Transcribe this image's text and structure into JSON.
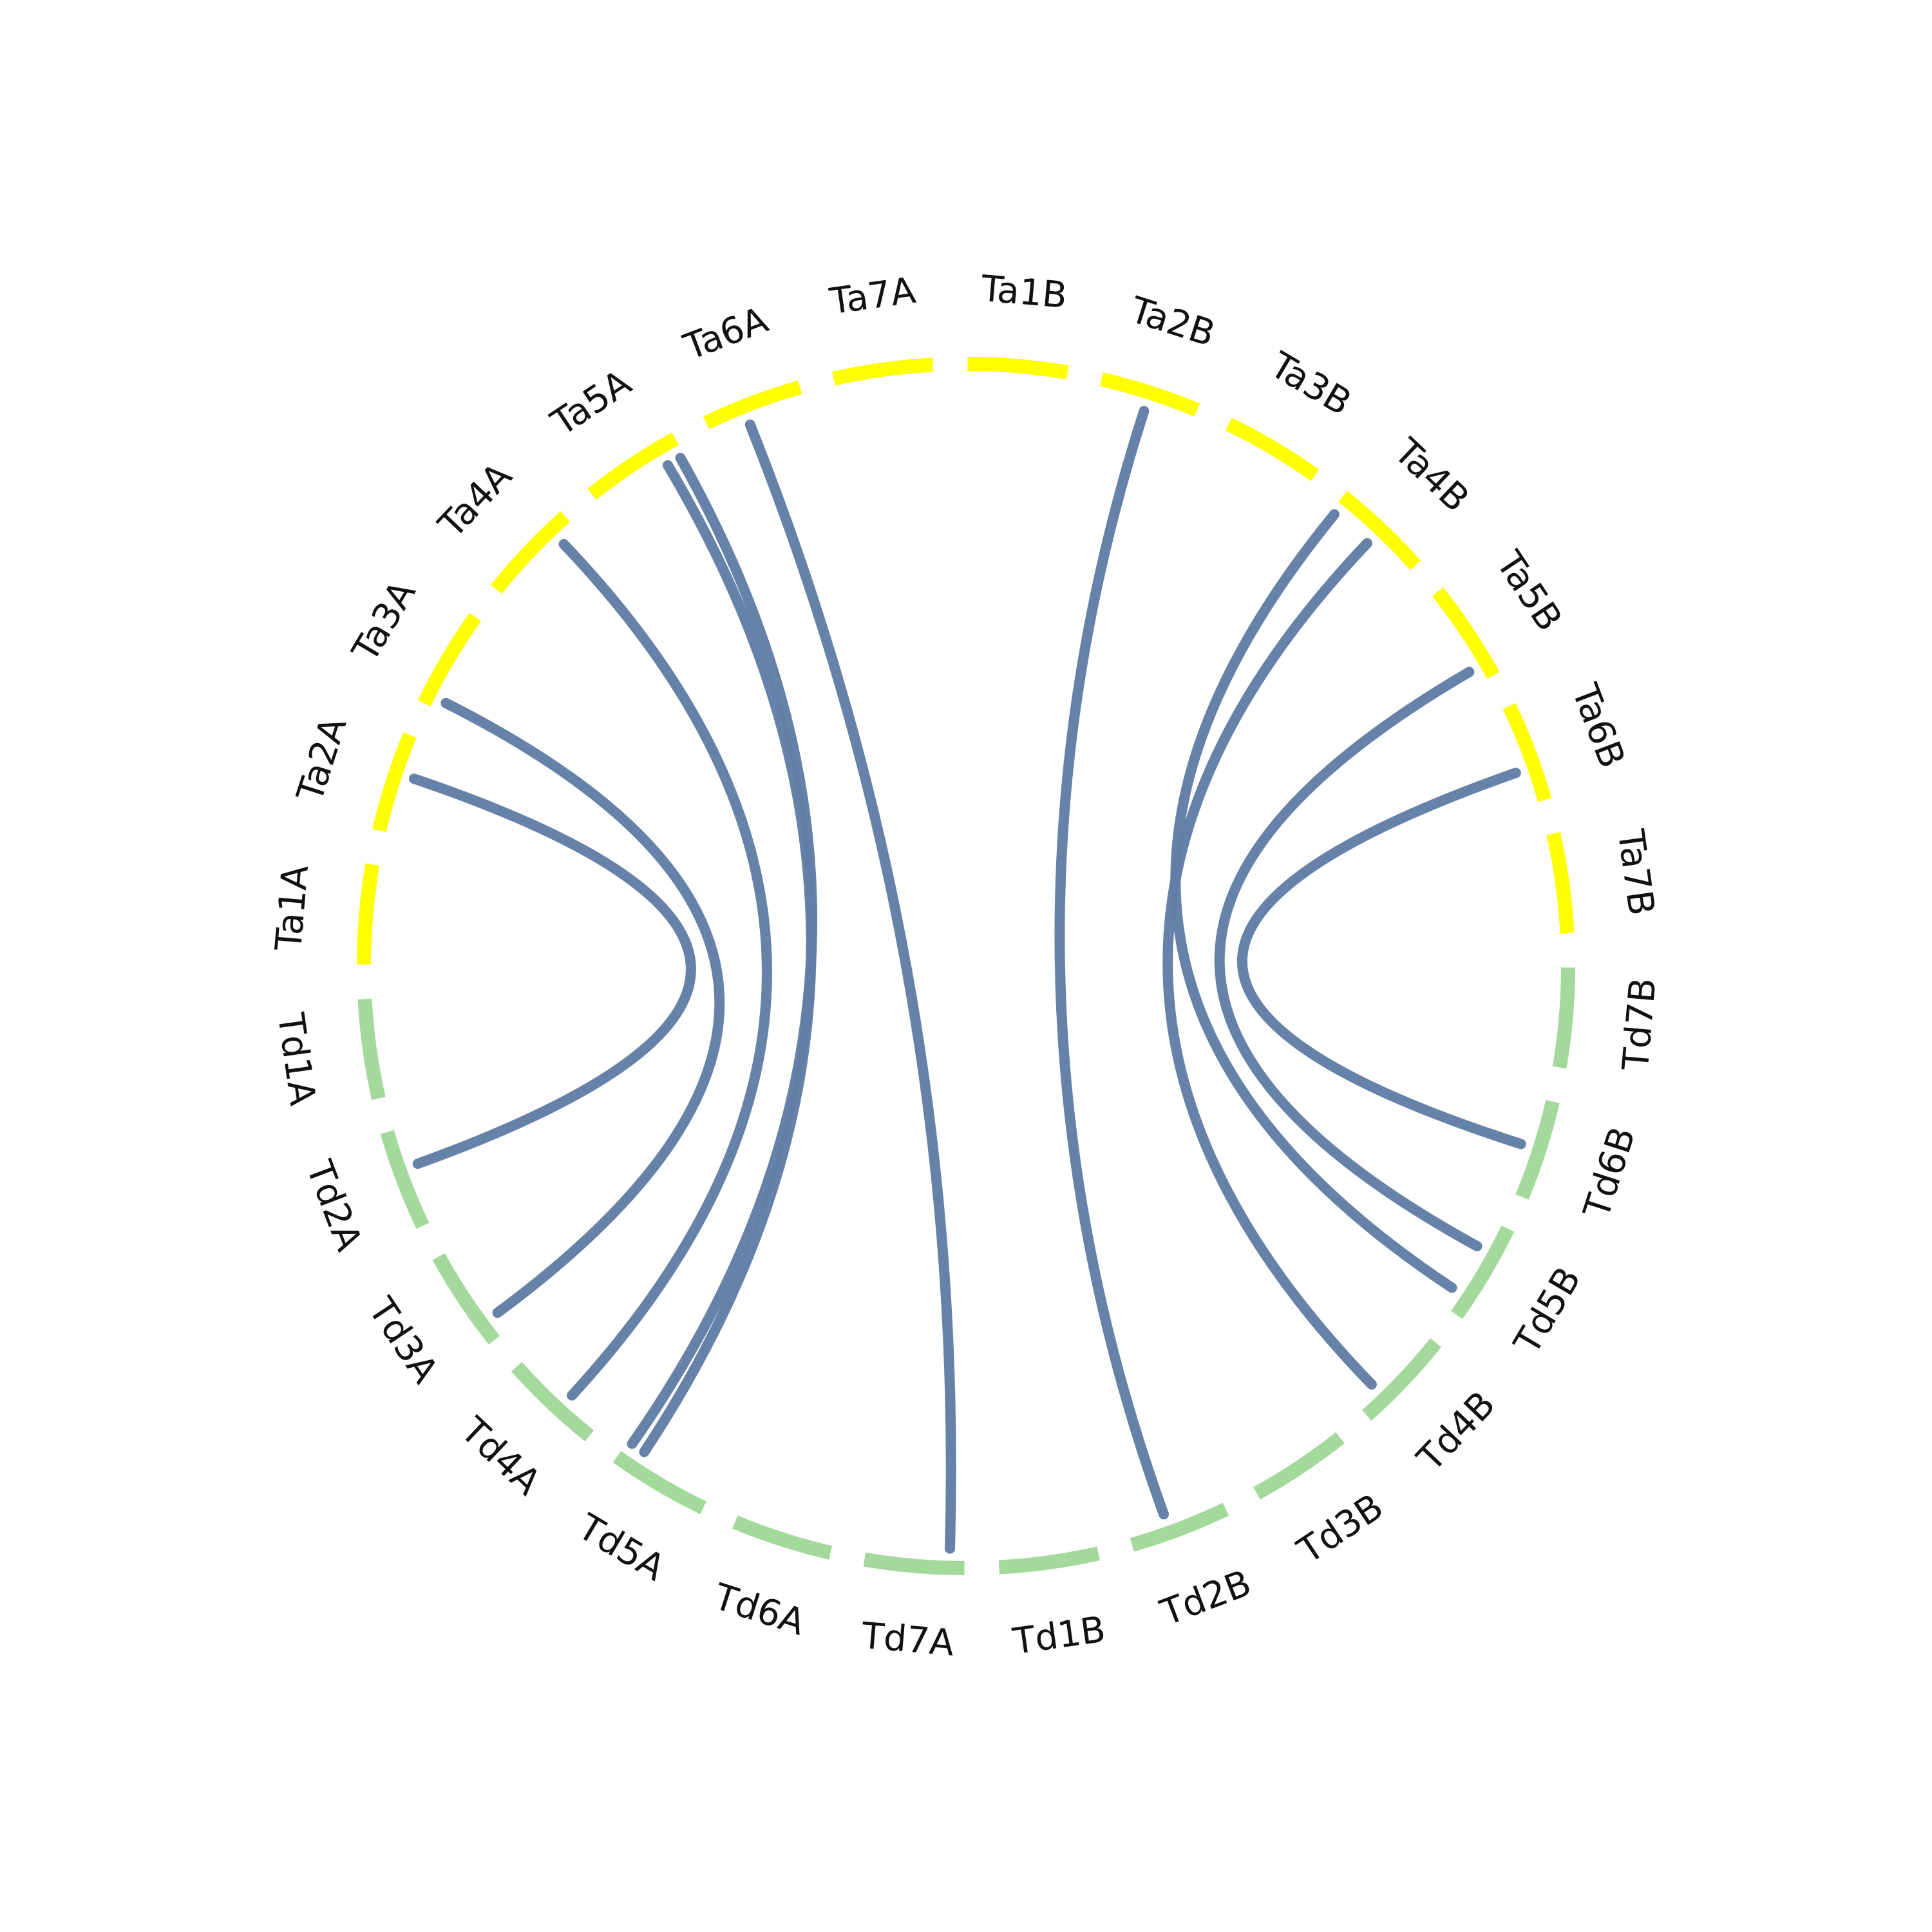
{
  "colors": {
    "background": "#ffffff",
    "td_segment": "#a3d99b",
    "ta_segment": "#ffff00",
    "link": "#627ea6"
  },
  "chart_data": {
    "type": "chord",
    "segments": [
      {
        "name": "Ta1A",
        "group": "Ta"
      },
      {
        "name": "Ta2A",
        "group": "Ta"
      },
      {
        "name": "Ta3A",
        "group": "Ta"
      },
      {
        "name": "Ta4A",
        "group": "Ta"
      },
      {
        "name": "Ta5A",
        "group": "Ta"
      },
      {
        "name": "Ta6A",
        "group": "Ta"
      },
      {
        "name": "Ta7A",
        "group": "Ta"
      },
      {
        "name": "Ta1B",
        "group": "Ta"
      },
      {
        "name": "Ta2B",
        "group": "Ta"
      },
      {
        "name": "Ta3B",
        "group": "Ta"
      },
      {
        "name": "Ta4B",
        "group": "Ta"
      },
      {
        "name": "Ta5B",
        "group": "Ta"
      },
      {
        "name": "Ta6B",
        "group": "Ta"
      },
      {
        "name": "Ta7B",
        "group": "Ta"
      },
      {
        "name": "Td7B",
        "group": "Td"
      },
      {
        "name": "Td6B",
        "group": "Td"
      },
      {
        "name": "Td5B",
        "group": "Td"
      },
      {
        "name": "Td4B",
        "group": "Td"
      },
      {
        "name": "Td3B",
        "group": "Td"
      },
      {
        "name": "Td2B",
        "group": "Td"
      },
      {
        "name": "Td1B",
        "group": "Td"
      },
      {
        "name": "Td7A",
        "group": "Td"
      },
      {
        "name": "Td6A",
        "group": "Td"
      },
      {
        "name": "Td5A",
        "group": "Td"
      },
      {
        "name": "Td4A",
        "group": "Td"
      },
      {
        "name": "Td3A",
        "group": "Td"
      },
      {
        "name": "Td2A",
        "group": "Td"
      },
      {
        "name": "Td1A",
        "group": "Td"
      }
    ],
    "links": [
      {
        "source": "Td2A",
        "source_pos": 0.6,
        "target": "Ta2A",
        "target_pos": 0.6
      },
      {
        "source": "Td3A",
        "source_pos": 0.2,
        "target": "Ta3A",
        "target_pos": 0.1
      },
      {
        "source": "Td4A",
        "source_pos": 0.4,
        "target": "Ta4A",
        "target_pos": 0.8
      },
      {
        "source": "Td5A",
        "source_pos": 0.8,
        "target": "Ta5A",
        "target_pos": 0.8
      },
      {
        "source": "Td5A",
        "source_pos": 0.95,
        "target": "Ta5A",
        "target_pos": 0.95
      },
      {
        "source": "Td7A",
        "source_pos": 0.15,
        "target": "Ta6A",
        "target_pos": 0.4
      },
      {
        "source": "Td2B",
        "source_pos": 0.6,
        "target": "Ta2B",
        "target_pos": 0.5
      },
      {
        "source": "Td4B",
        "source_pos": 0.75,
        "target": "Ta4B",
        "target_pos": 0.5
      },
      {
        "source": "Td5B",
        "source_pos": 0.8,
        "target": "Ta4B",
        "target_pos": 0.05
      },
      {
        "source": "Td5B",
        "source_pos": 0.3,
        "target": "Ta5B",
        "target_pos": 0.85
      },
      {
        "source": "Td6B",
        "source_pos": 0.5,
        "target": "Ta6B",
        "target_pos": 0.65
      }
    ]
  }
}
